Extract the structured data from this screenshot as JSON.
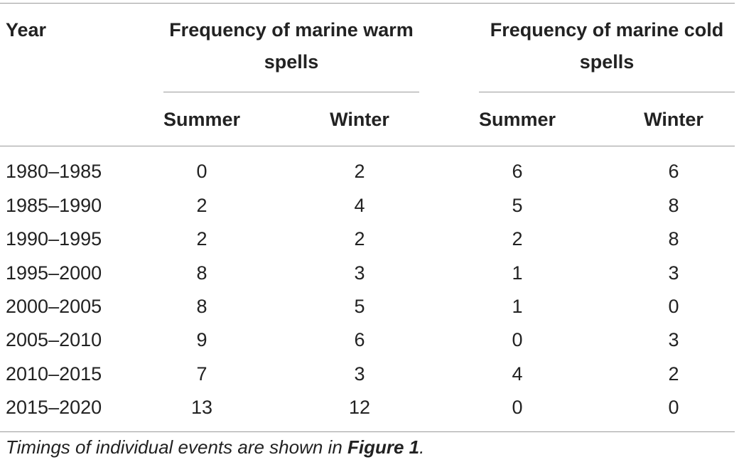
{
  "table": {
    "headers": {
      "year": "Year",
      "warm_group": "Frequency of marine warm spells",
      "cold_group": "Frequency of marine cold spells",
      "warm_summer": "Summer",
      "warm_winter": "Winter",
      "cold_summer": "Summer",
      "cold_winter": "Winter"
    },
    "rows": [
      {
        "year": "1980–1985",
        "warm_summer": "0",
        "warm_winter": "2",
        "cold_summer": "6",
        "cold_winter": "6"
      },
      {
        "year": "1985–1990",
        "warm_summer": "2",
        "warm_winter": "4",
        "cold_summer": "5",
        "cold_winter": "8"
      },
      {
        "year": "1990–1995",
        "warm_summer": "2",
        "warm_winter": "2",
        "cold_summer": "2",
        "cold_winter": "8"
      },
      {
        "year": "1995–2000",
        "warm_summer": "8",
        "warm_winter": "3",
        "cold_summer": "1",
        "cold_winter": "3"
      },
      {
        "year": "2000–2005",
        "warm_summer": "8",
        "warm_winter": "5",
        "cold_summer": "1",
        "cold_winter": "0"
      },
      {
        "year": "2005–2010",
        "warm_summer": "9",
        "warm_winter": "6",
        "cold_summer": "0",
        "cold_winter": "3"
      },
      {
        "year": "2010–2015",
        "warm_summer": "7",
        "warm_winter": "3",
        "cold_summer": "4",
        "cold_winter": "2"
      },
      {
        "year": "2015–2020",
        "warm_summer": "13",
        "warm_winter": "12",
        "cold_summer": "0",
        "cold_winter": "0"
      }
    ]
  },
  "footnote": {
    "prefix": "Timings of individual events are shown in ",
    "ref": "Figure 1",
    "suffix": "."
  }
}
